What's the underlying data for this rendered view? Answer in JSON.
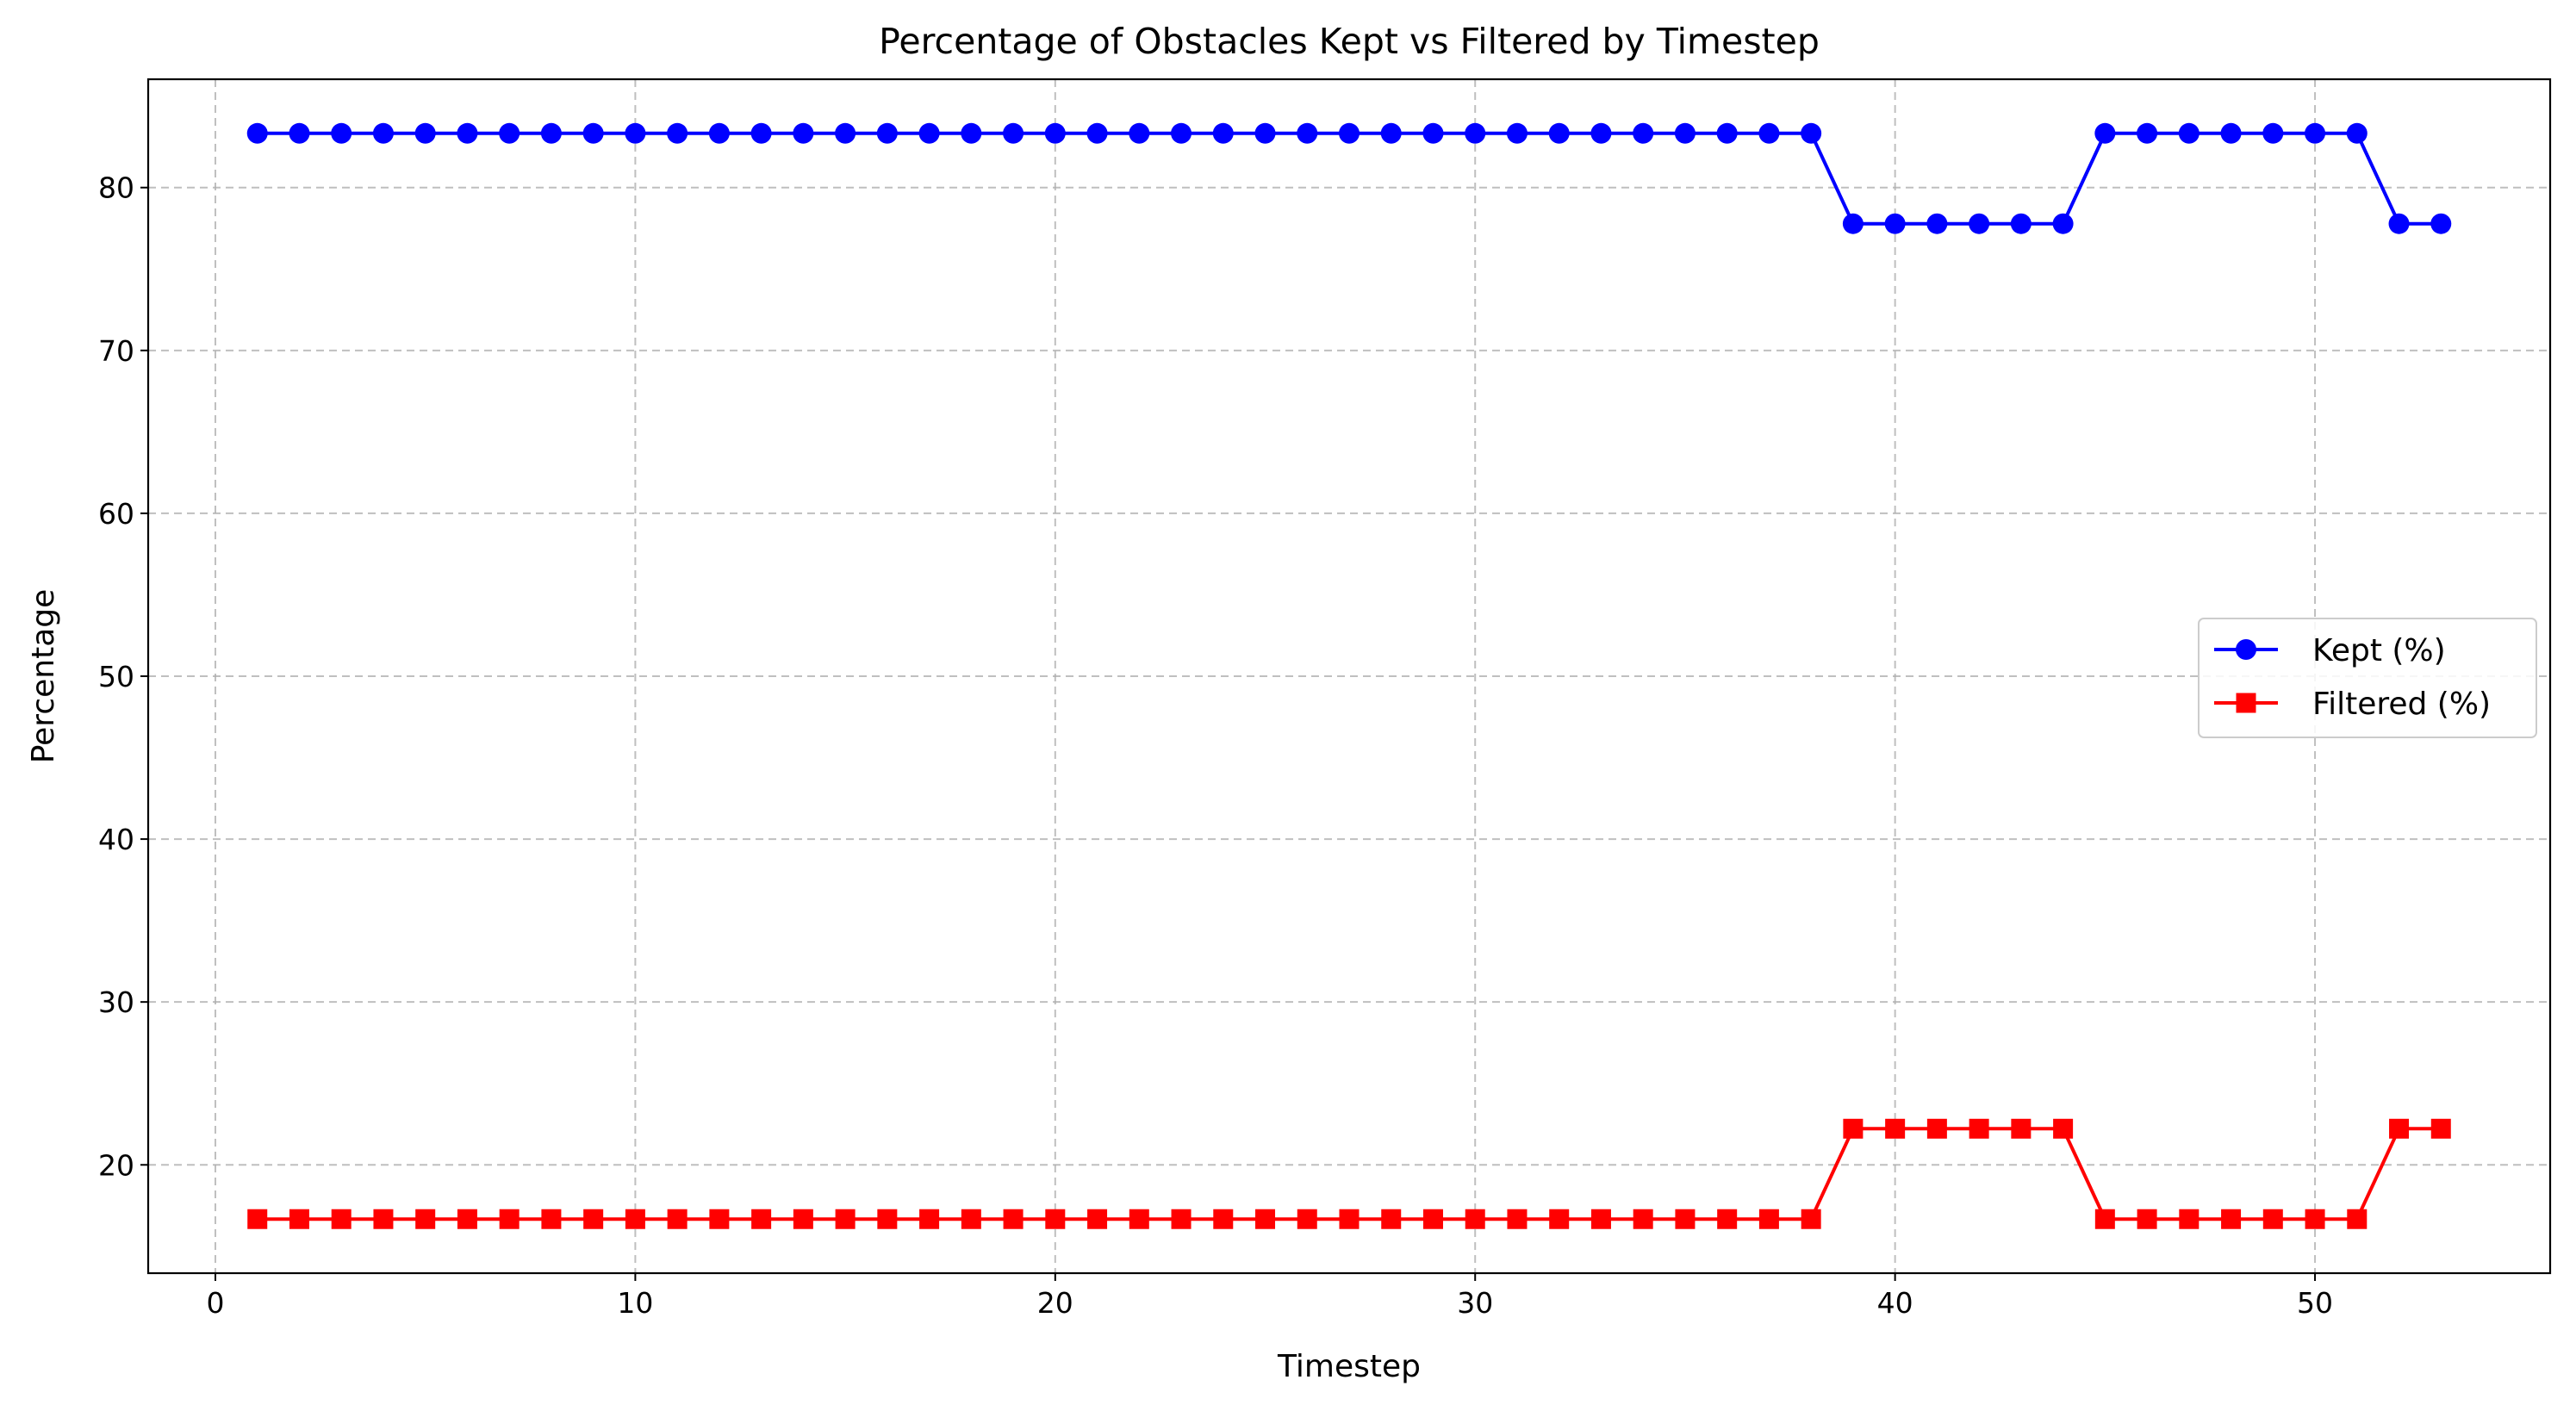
{
  "chart_data": {
    "type": "line",
    "title": "Percentage of Obstacles Kept vs Filtered by Timestep",
    "xlabel": "Timestep",
    "ylabel": "Percentage",
    "xlim": [
      -1.6,
      55.6
    ],
    "ylim": [
      13.35,
      86.65
    ],
    "xticks": [
      0,
      10,
      20,
      30,
      40,
      50
    ],
    "yticks": [
      20,
      30,
      40,
      50,
      60,
      70,
      80
    ],
    "grid": true,
    "legend_position": "center-right",
    "x": [
      1,
      2,
      3,
      4,
      5,
      6,
      7,
      8,
      9,
      10,
      11,
      12,
      13,
      14,
      15,
      16,
      17,
      18,
      19,
      20,
      21,
      22,
      23,
      24,
      25,
      26,
      27,
      28,
      29,
      30,
      31,
      32,
      33,
      34,
      35,
      36,
      37,
      38,
      39,
      40,
      41,
      42,
      43,
      44,
      45,
      46,
      47,
      48,
      49,
      50,
      51,
      52,
      53
    ],
    "series": [
      {
        "name": "Kept (%)",
        "color": "#0000ff",
        "marker": "circle",
        "values": [
          83.33,
          83.33,
          83.33,
          83.33,
          83.33,
          83.33,
          83.33,
          83.33,
          83.33,
          83.33,
          83.33,
          83.33,
          83.33,
          83.33,
          83.33,
          83.33,
          83.33,
          83.33,
          83.33,
          83.33,
          83.33,
          83.33,
          83.33,
          83.33,
          83.33,
          83.33,
          83.33,
          83.33,
          83.33,
          83.33,
          83.33,
          83.33,
          83.33,
          83.33,
          83.33,
          83.33,
          83.33,
          83.33,
          77.78,
          77.78,
          77.78,
          77.78,
          77.78,
          77.78,
          83.33,
          83.33,
          83.33,
          83.33,
          83.33,
          83.33,
          83.33,
          77.78,
          77.78
        ]
      },
      {
        "name": "Filtered (%)",
        "color": "#ff0000",
        "marker": "square",
        "values": [
          16.67,
          16.67,
          16.67,
          16.67,
          16.67,
          16.67,
          16.67,
          16.67,
          16.67,
          16.67,
          16.67,
          16.67,
          16.67,
          16.67,
          16.67,
          16.67,
          16.67,
          16.67,
          16.67,
          16.67,
          16.67,
          16.67,
          16.67,
          16.67,
          16.67,
          16.67,
          16.67,
          16.67,
          16.67,
          16.67,
          16.67,
          16.67,
          16.67,
          16.67,
          16.67,
          16.67,
          16.67,
          16.67,
          22.22,
          22.22,
          22.22,
          22.22,
          22.22,
          22.22,
          16.67,
          16.67,
          16.67,
          16.67,
          16.67,
          16.67,
          16.67,
          22.22,
          22.22
        ]
      }
    ]
  }
}
